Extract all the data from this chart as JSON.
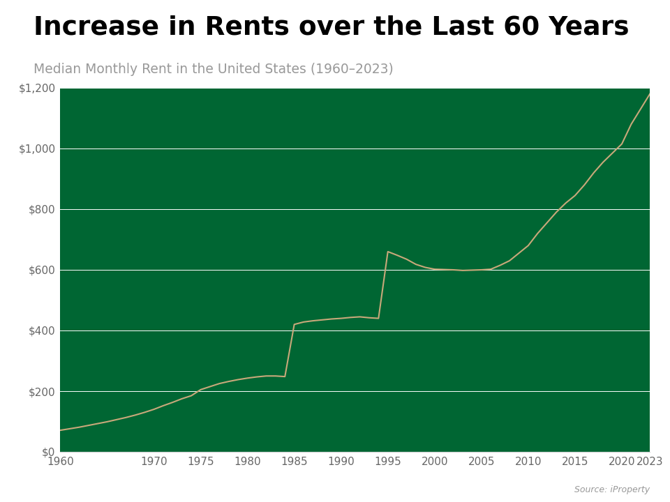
{
  "title": "Increase in Rents over the Last 60 Years",
  "subtitle": "Median Monthly Rent in the United States (1960–2023)",
  "source": "Source: iProperty",
  "background_color": "#006633",
  "page_background": "#ffffff",
  "line_color": "#c8a87a",
  "grid_color": "#ffffff",
  "title_color": "#000000",
  "subtitle_color": "#999999",
  "years": [
    1960,
    1961,
    1962,
    1963,
    1964,
    1965,
    1966,
    1967,
    1968,
    1969,
    1970,
    1971,
    1972,
    1973,
    1974,
    1975,
    1976,
    1977,
    1978,
    1979,
    1980,
    1981,
    1982,
    1983,
    1984,
    1985,
    1986,
    1987,
    1988,
    1989,
    1990,
    1991,
    1992,
    1993,
    1994,
    1995,
    1996,
    1997,
    1998,
    1999,
    2000,
    2001,
    2002,
    2003,
    2004,
    2005,
    2006,
    2007,
    2008,
    2009,
    2010,
    2011,
    2012,
    2013,
    2014,
    2015,
    2016,
    2017,
    2018,
    2019,
    2020,
    2021,
    2022,
    2023
  ],
  "values": [
    71,
    76,
    81,
    87,
    93,
    99,
    106,
    113,
    121,
    130,
    140,
    152,
    163,
    175,
    185,
    205,
    215,
    225,
    232,
    238,
    243,
    247,
    250,
    250,
    248,
    420,
    428,
    432,
    435,
    438,
    440,
    443,
    445,
    442,
    440,
    660,
    648,
    635,
    618,
    608,
    602,
    601,
    600,
    598,
    599,
    600,
    602,
    615,
    630,
    655,
    680,
    720,
    755,
    790,
    820,
    845,
    880,
    920,
    955,
    985,
    1015,
    1080,
    1130,
    1180
  ],
  "ylim": [
    0,
    1200
  ],
  "yticks": [
    0,
    200,
    400,
    600,
    800,
    1000,
    1200
  ],
  "ytick_labels": [
    "$0",
    "$200",
    "$400",
    "$600",
    "$800",
    "$1,000",
    "$1,200"
  ],
  "xticks": [
    1960,
    1970,
    1975,
    1980,
    1985,
    1990,
    1995,
    2000,
    2005,
    2010,
    2015,
    2020,
    2023
  ]
}
